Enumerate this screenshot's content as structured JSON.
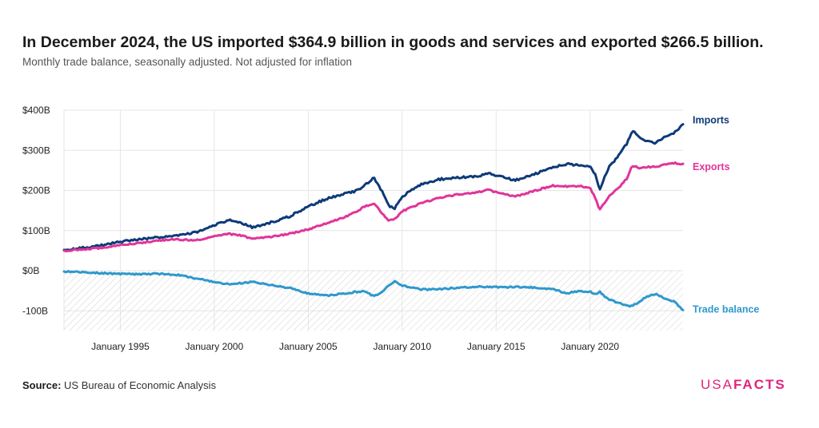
{
  "title": "In December 2024, the US imported $364.9 billion in goods and services and exported $266.5 billion.",
  "subtitle": "Monthly trade balance, seasonally adjusted. Not adjusted for inflation",
  "source": {
    "label": "Source:",
    "text": "US Bureau of Economic Analysis"
  },
  "logo": {
    "part1": "USA",
    "part2": "FACTS"
  },
  "colors": {
    "imports": "#0d3a78",
    "exports": "#e0359a",
    "trade_balance": "#2f98cc",
    "grid": "#e6e6e6",
    "hatch": "#c8c8c8"
  },
  "chart_data": {
    "type": "line",
    "title": "In December 2024, the US imported $364.9 billion in goods and services and exported $266.5 billion.",
    "xlabel": "",
    "ylabel": "",
    "xlim": [
      1992.0,
      2024.95
    ],
    "ylim": [
      -150,
      400
    ],
    "x_ticks": [
      {
        "value": 1995,
        "label": "January 1995"
      },
      {
        "value": 2000,
        "label": "January 2000"
      },
      {
        "value": 2005,
        "label": "January 2005"
      },
      {
        "value": 2010,
        "label": "January 2010"
      },
      {
        "value": 2015,
        "label": "January 2015"
      },
      {
        "value": 2020,
        "label": "January 2020"
      }
    ],
    "y_ticks": [
      {
        "value": -100,
        "label": "-100B"
      },
      {
        "value": 0,
        "label": "$0B"
      },
      {
        "value": 100,
        "label": "$100B"
      },
      {
        "value": 200,
        "label": "$200B"
      },
      {
        "value": 300,
        "label": "$300B"
      },
      {
        "value": 400,
        "label": "$400B"
      }
    ],
    "grid": true,
    "legend": "direct labels at right end of lines",
    "series": [
      {
        "name": "Imports",
        "x": [
          1992.0,
          1993.0,
          1994.0,
          1995.0,
          1996.0,
          1997.0,
          1998.0,
          1999.0,
          2000.0,
          2000.75,
          2001.5,
          2002.0,
          2003.0,
          2004.0,
          2005.0,
          2006.0,
          2007.0,
          2007.5,
          2008.0,
          2008.5,
          2008.9,
          2009.3,
          2009.6,
          2010.0,
          2011.0,
          2012.0,
          2013.0,
          2014.0,
          2014.6,
          2015.0,
          2015.5,
          2016.0,
          2017.0,
          2018.0,
          2018.75,
          2019.5,
          2020.0,
          2020.3,
          2020.5,
          2021.0,
          2021.5,
          2022.0,
          2022.25,
          2022.7,
          2023.0,
          2023.5,
          2024.0,
          2024.5,
          2024.95
        ],
        "values": [
          52,
          57,
          63,
          72,
          78,
          83,
          88,
          95,
          113,
          126,
          118,
          108,
          120,
          135,
          160,
          180,
          192,
          198,
          212,
          232,
          200,
          160,
          155,
          185,
          215,
          228,
          232,
          235,
          243,
          236,
          232,
          225,
          240,
          258,
          266,
          262,
          258,
          240,
          202,
          258,
          285,
          320,
          350,
          330,
          322,
          318,
          333,
          345,
          364.9
        ]
      },
      {
        "name": "Exports",
        "x": [
          1992.0,
          1993.0,
          1994.0,
          1995.0,
          1996.0,
          1997.0,
          1998.0,
          1999.0,
          2000.0,
          2000.75,
          2001.5,
          2002.0,
          2003.0,
          2004.0,
          2005.0,
          2006.0,
          2007.0,
          2007.5,
          2008.0,
          2008.5,
          2008.9,
          2009.3,
          2009.6,
          2010.0,
          2011.0,
          2012.0,
          2013.0,
          2014.0,
          2014.6,
          2015.0,
          2015.5,
          2016.0,
          2017.0,
          2018.0,
          2018.75,
          2019.5,
          2020.0,
          2020.3,
          2020.5,
          2021.0,
          2021.5,
          2022.0,
          2022.25,
          2022.7,
          2023.0,
          2023.5,
          2024.0,
          2024.5,
          2024.95
        ],
        "values": [
          50,
          53,
          57,
          64,
          69,
          75,
          78,
          76,
          85,
          92,
          87,
          80,
          84,
          92,
          103,
          118,
          135,
          145,
          160,
          168,
          145,
          125,
          128,
          148,
          168,
          182,
          190,
          195,
          202,
          195,
          190,
          185,
          198,
          212,
          210,
          211,
          206,
          180,
          150,
          186,
          205,
          232,
          262,
          255,
          258,
          260,
          264,
          268,
          266.5
        ]
      },
      {
        "name": "Trade balance",
        "x": [
          1992.0,
          1993.0,
          1994.0,
          1995.0,
          1996.0,
          1997.0,
          1998.0,
          1999.0,
          2000.0,
          2000.75,
          2001.5,
          2002.0,
          2003.0,
          2004.0,
          2005.0,
          2006.0,
          2007.0,
          2007.5,
          2008.0,
          2008.5,
          2008.9,
          2009.3,
          2009.6,
          2010.0,
          2011.0,
          2012.0,
          2013.0,
          2014.0,
          2014.6,
          2015.0,
          2015.5,
          2016.0,
          2017.0,
          2018.0,
          2018.75,
          2019.5,
          2020.0,
          2020.3,
          2020.5,
          2021.0,
          2021.5,
          2022.0,
          2022.25,
          2022.7,
          2023.0,
          2023.5,
          2024.0,
          2024.5,
          2024.95
        ],
        "values": [
          -2,
          -4,
          -6,
          -8,
          -9,
          -8,
          -10,
          -19,
          -28,
          -34,
          -31,
          -28,
          -36,
          -43,
          -57,
          -62,
          -57,
          -53,
          -52,
          -64,
          -55,
          -35,
          -27,
          -37,
          -47,
          -46,
          -42,
          -40,
          -41,
          -41,
          -42,
          -40,
          -42,
          -46,
          -56,
          -51,
          -52,
          -60,
          -52,
          -72,
          -80,
          -88,
          -88,
          -75,
          -64,
          -58,
          -69,
          -77,
          -98.4
        ]
      }
    ]
  }
}
